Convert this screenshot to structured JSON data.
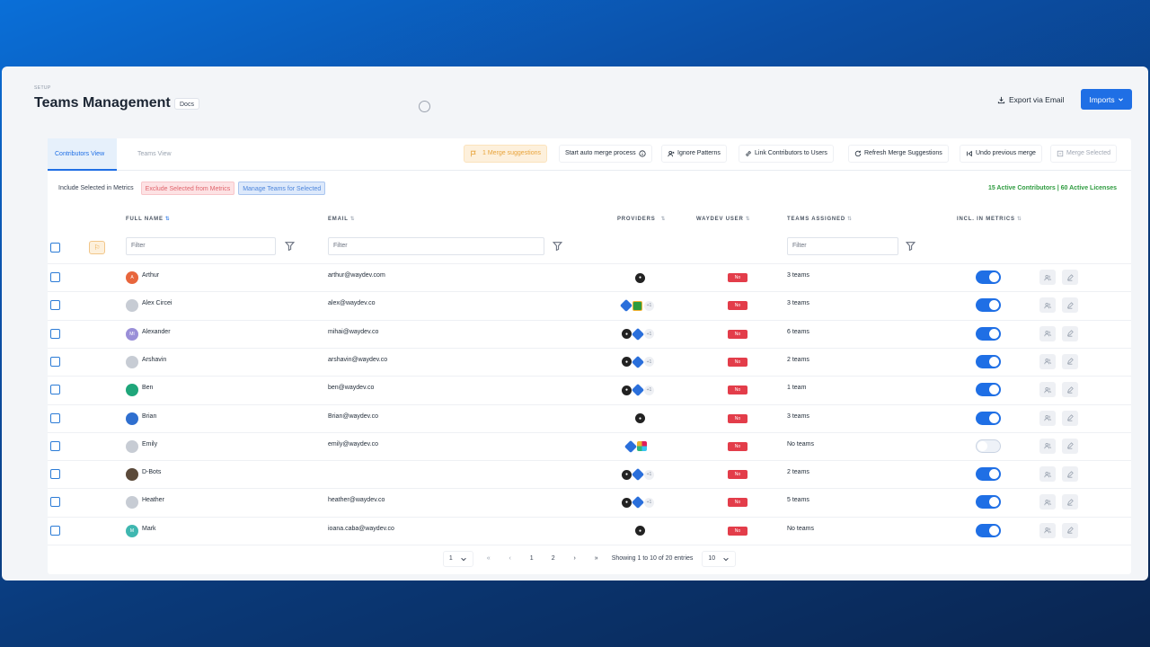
{
  "header": {
    "breadcrumb": "SETUP",
    "title": "Teams Management",
    "docs_label": "Docs",
    "export_label": "Export via Email",
    "imports_label": "Imports"
  },
  "tabs": [
    {
      "label": "Contributors View",
      "active": true
    },
    {
      "label": "Teams View",
      "active": false
    }
  ],
  "toolbar": {
    "merge_suggestions": "1 Merge suggestions",
    "auto_merge": "Start auto merge process",
    "ignore_patterns": "Ignore Patterns",
    "link_contributors": "Link Contributors to Users",
    "refresh_merge": "Refresh Merge Suggestions",
    "undo_merge": "Undo previous merge",
    "merge_selected": "Merge Selected"
  },
  "sub_actions": {
    "include": "Include Selected in Metrics",
    "exclude": "Exclude Selected from Metrics",
    "manage": "Manage Teams for Selected"
  },
  "summary": "15 Active Contributors | 60 Active Licenses",
  "columns": {
    "full_name": "FULL NAME",
    "email": "EMAIL",
    "providers": "PROVIDERS",
    "waydev_user": "WAYDEV USER",
    "teams_assigned": "TEAMS ASSIGNED",
    "incl_metrics": "INCL. IN METRICS"
  },
  "filters": {
    "name_placeholder": "Filter",
    "email_placeholder": "Filter",
    "teams_placeholder": "Filter"
  },
  "rows": [
    {
      "name": "Arthur",
      "email": "arthur@waydev.com",
      "providers": [
        "github"
      ],
      "waydev_user": "No",
      "teams": "3 teams",
      "included": true,
      "avatar_color": "#e8663d",
      "avatar_text": "A"
    },
    {
      "name": "Alex Circei",
      "email": "alex@waydev.co",
      "providers": [
        "jira",
        "sheet",
        "+1"
      ],
      "waydev_user": "No",
      "teams": "3 teams",
      "included": true,
      "avatar_color": "#c7ccd4",
      "avatar_text": ""
    },
    {
      "name": "Alexander",
      "email": "mihai@waydev.co",
      "providers": [
        "github",
        "jira",
        "+1"
      ],
      "waydev_user": "No",
      "teams": "6 teams",
      "included": true,
      "avatar_color": "#9a8fd8",
      "avatar_text": "MI"
    },
    {
      "name": "Arshavin",
      "email": "arshavin@waydev.co",
      "providers": [
        "github",
        "jira",
        "+1"
      ],
      "waydev_user": "No",
      "teams": "2 teams",
      "included": true,
      "avatar_color": "#c7ccd4",
      "avatar_text": ""
    },
    {
      "name": "Ben",
      "email": "ben@waydev.co",
      "providers": [
        "github",
        "jira",
        "+1"
      ],
      "waydev_user": "No",
      "teams": "1 team",
      "included": true,
      "avatar_color": "#1fa67a",
      "avatar_text": ""
    },
    {
      "name": "Brian",
      "email": "Brian@waydev.co",
      "providers": [
        "github"
      ],
      "waydev_user": "No",
      "teams": "3 teams",
      "included": true,
      "avatar_color": "#2f6fcf",
      "avatar_text": ""
    },
    {
      "name": "Emily",
      "email": "emily@waydev.co",
      "providers": [
        "jira",
        "slack"
      ],
      "waydev_user": "No",
      "teams": "No teams",
      "included": false,
      "avatar_color": "#c7ccd4",
      "avatar_text": ""
    },
    {
      "name": "D-Bots",
      "email": "",
      "providers": [
        "github",
        "jira",
        "+1"
      ],
      "waydev_user": "No",
      "teams": "2 teams",
      "included": true,
      "avatar_color": "#5b4a3a",
      "avatar_text": ""
    },
    {
      "name": "Heather",
      "email": "heather@waydev.co",
      "providers": [
        "github",
        "jira",
        "+1"
      ],
      "waydev_user": "No",
      "teams": "5 teams",
      "included": true,
      "avatar_color": "#c7ccd4",
      "avatar_text": ""
    },
    {
      "name": "Mark",
      "email": "ioana.caba@waydev.co",
      "providers": [
        "github"
      ],
      "waydev_user": "No",
      "teams": "No teams",
      "included": true,
      "avatar_color": "#3fb7b0",
      "avatar_text": "M"
    }
  ],
  "pagination": {
    "current_page_select": "1",
    "pages": [
      "1",
      "2"
    ],
    "info": "Showing 1 to 10 of 20 entries",
    "page_size": "10"
  },
  "colors": {
    "accent": "#1f6fe5",
    "danger": "#e33d4a",
    "success": "#2e9b3f",
    "warning": "#e8a33a"
  }
}
